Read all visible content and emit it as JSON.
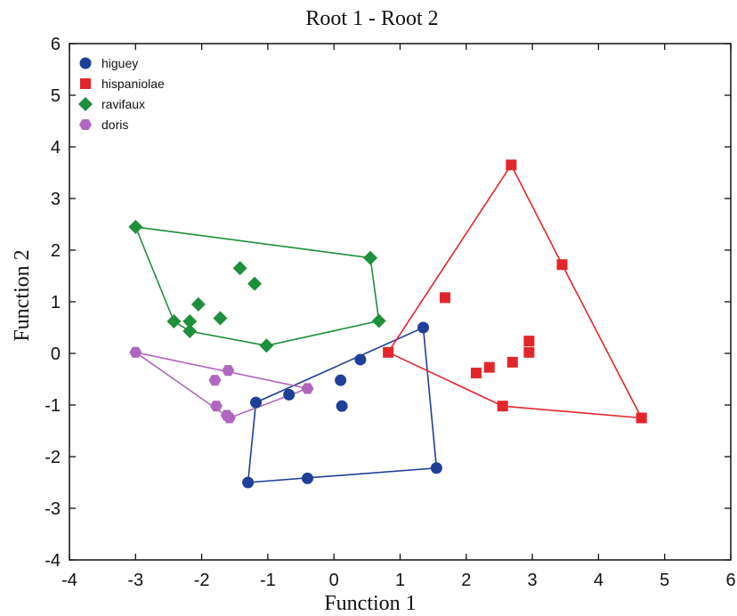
{
  "chart_data": {
    "type": "scatter",
    "title": "Root 1 - Root 2",
    "xlabel": "Function 1",
    "ylabel": "Function 2",
    "xlim": [
      -4,
      6
    ],
    "ylim": [
      -4,
      6
    ],
    "xticks": [
      -4,
      -3,
      -2,
      -1,
      0,
      1,
      2,
      3,
      4,
      5,
      6
    ],
    "yticks": [
      -4,
      -3,
      -2,
      -1,
      0,
      1,
      2,
      3,
      4,
      5,
      6
    ],
    "grid": false,
    "legend_position": "top-left",
    "convex_hulls": true,
    "series": [
      {
        "name": "higuey",
        "marker": "circle",
        "color": "#1f3f99",
        "points": [
          [
            -1.3,
            -2.5
          ],
          [
            -0.4,
            -2.42
          ],
          [
            1.55,
            -2.22
          ],
          [
            1.35,
            0.5
          ],
          [
            0.4,
            -0.12
          ],
          [
            0.1,
            -0.52
          ],
          [
            0.12,
            -1.02
          ],
          [
            -0.68,
            -0.8
          ],
          [
            -1.18,
            -0.95
          ]
        ],
        "hull": [
          [
            -1.3,
            -2.5
          ],
          [
            1.55,
            -2.22
          ],
          [
            1.35,
            0.5
          ],
          [
            -1.18,
            -0.95
          ]
        ]
      },
      {
        "name": "hispaniolae",
        "marker": "square",
        "color": "#e3262c",
        "points": [
          [
            2.68,
            3.65
          ],
          [
            3.45,
            1.72
          ],
          [
            4.65,
            -1.25
          ],
          [
            2.55,
            -1.02
          ],
          [
            0.82,
            0.02
          ],
          [
            1.68,
            1.08
          ],
          [
            2.15,
            -0.38
          ],
          [
            2.35,
            -0.27
          ],
          [
            2.7,
            -0.17
          ],
          [
            2.95,
            0.02
          ],
          [
            2.95,
            0.24
          ]
        ],
        "hull": [
          [
            2.68,
            3.65
          ],
          [
            3.45,
            1.72
          ],
          [
            4.65,
            -1.25
          ],
          [
            2.55,
            -1.02
          ],
          [
            0.82,
            0.02
          ]
        ]
      },
      {
        "name": "ravifaux",
        "marker": "diamond",
        "color": "#1e8f3a",
        "points": [
          [
            -3.0,
            2.45
          ],
          [
            0.55,
            1.85
          ],
          [
            0.68,
            0.63
          ],
          [
            -1.02,
            0.15
          ],
          [
            -2.18,
            0.43
          ],
          [
            -2.42,
            0.62
          ],
          [
            -2.18,
            0.62
          ],
          [
            -2.05,
            0.95
          ],
          [
            -1.72,
            0.68
          ],
          [
            -1.42,
            1.65
          ],
          [
            -1.2,
            1.35
          ]
        ],
        "hull": [
          [
            -3.0,
            2.45
          ],
          [
            0.55,
            1.85
          ],
          [
            0.68,
            0.63
          ],
          [
            -1.02,
            0.15
          ],
          [
            -2.18,
            0.43
          ],
          [
            -2.42,
            0.62
          ]
        ]
      },
      {
        "name": "doris",
        "marker": "hexagon",
        "color": "#b066bf",
        "points": [
          [
            -3.0,
            0.02
          ],
          [
            -0.4,
            -0.68
          ],
          [
            -1.58,
            -1.25
          ],
          [
            -1.62,
            -1.2
          ],
          [
            -1.78,
            -1.02
          ],
          [
            -1.8,
            -0.52
          ],
          [
            -1.6,
            -0.33
          ]
        ],
        "hull": [
          [
            -3.0,
            0.02
          ],
          [
            -0.4,
            -0.68
          ],
          [
            -1.58,
            -1.25
          ]
        ]
      }
    ]
  }
}
